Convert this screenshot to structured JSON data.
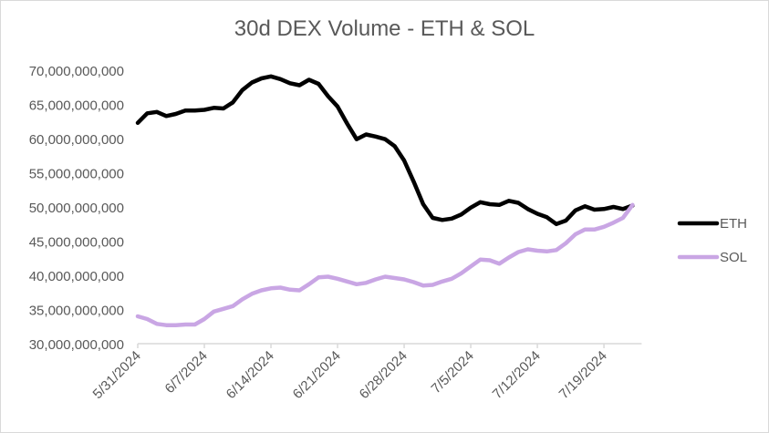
{
  "chart_data": {
    "type": "line",
    "title": "30d DEX Volume - ETH & SOL",
    "xlabel": "",
    "ylabel": "",
    "ylim": [
      30000000000,
      70000000000
    ],
    "ytick_step": 5000000000,
    "yticks": [
      "30,000,000,000",
      "35,000,000,000",
      "40,000,000,000",
      "45,000,000,000",
      "50,000,000,000",
      "55,000,000,000",
      "60,000,000,000",
      "65,000,000,000",
      "70,000,000,000"
    ],
    "xtick_labels": [
      "5/31/2024",
      "6/7/2024",
      "6/14/2024",
      "6/21/2024",
      "6/28/2024",
      "7/5/2024",
      "7/12/2024",
      "7/19/2024"
    ],
    "xtick_every_days": 7,
    "grid": false,
    "legend": "right",
    "x": [
      "5/31/2024",
      "6/1/2024",
      "6/2/2024",
      "6/3/2024",
      "6/4/2024",
      "6/5/2024",
      "6/6/2024",
      "6/7/2024",
      "6/8/2024",
      "6/9/2024",
      "6/10/2024",
      "6/11/2024",
      "6/12/2024",
      "6/13/2024",
      "6/14/2024",
      "6/15/2024",
      "6/16/2024",
      "6/17/2024",
      "6/18/2024",
      "6/19/2024",
      "6/20/2024",
      "6/21/2024",
      "6/22/2024",
      "6/23/2024",
      "6/24/2024",
      "6/25/2024",
      "6/26/2024",
      "6/27/2024",
      "6/28/2024",
      "6/29/2024",
      "6/30/2024",
      "7/1/2024",
      "7/2/2024",
      "7/3/2024",
      "7/4/2024",
      "7/5/2024",
      "7/6/2024",
      "7/7/2024",
      "7/8/2024",
      "7/9/2024",
      "7/10/2024",
      "7/11/2024",
      "7/12/2024",
      "7/13/2024",
      "7/14/2024",
      "7/15/2024",
      "7/16/2024",
      "7/17/2024",
      "7/18/2024",
      "7/19/2024",
      "7/20/2024",
      "7/21/2024",
      "7/22/2024"
    ],
    "series": [
      {
        "name": "ETH",
        "color": "#000000",
        "values_billions": [
          62.3,
          63.7,
          63.9,
          63.3,
          63.6,
          64.1,
          64.1,
          64.2,
          64.5,
          64.4,
          65.3,
          67.1,
          68.2,
          68.8,
          69.1,
          68.7,
          68.1,
          67.8,
          68.6,
          68.0,
          66.2,
          64.7,
          62.2,
          59.9,
          60.6,
          60.3,
          59.9,
          58.9,
          56.8,
          53.7,
          50.4,
          48.4,
          48.1,
          48.3,
          48.9,
          49.9,
          50.7,
          50.4,
          50.3,
          50.9,
          50.6,
          49.7,
          49.0,
          48.5,
          47.5,
          48.0,
          49.5,
          50.1,
          49.6,
          49.7,
          50.0,
          49.7,
          50.2
        ]
      },
      {
        "name": "SOL",
        "color": "#c9a6e4",
        "values_billions": [
          34.0,
          33.6,
          32.9,
          32.7,
          32.7,
          32.8,
          32.8,
          33.6,
          34.7,
          35.1,
          35.5,
          36.5,
          37.3,
          37.8,
          38.1,
          38.2,
          37.9,
          37.8,
          38.7,
          39.7,
          39.8,
          39.5,
          39.1,
          38.7,
          38.9,
          39.4,
          39.8,
          39.6,
          39.4,
          39.0,
          38.5,
          38.6,
          39.1,
          39.5,
          40.3,
          41.3,
          42.3,
          42.2,
          41.7,
          42.6,
          43.4,
          43.8,
          43.6,
          43.5,
          43.7,
          44.7,
          46.0,
          46.7,
          46.7,
          47.1,
          47.7,
          48.4,
          50.3
        ]
      }
    ]
  }
}
